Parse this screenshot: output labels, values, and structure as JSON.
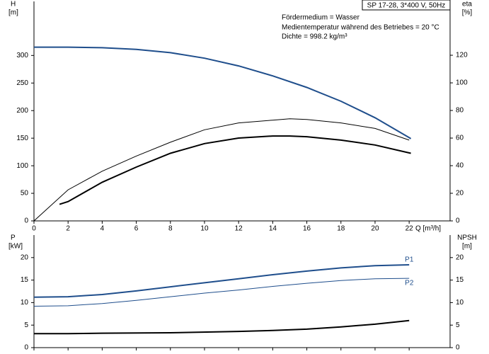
{
  "chart_data": [
    {
      "type": "line",
      "title": "SP 17-28, 3*400 V, 50Hz",
      "annotations": [
        "Fördermedium = Wasser",
        "Medientemperatur während des Betriebes = 20 °C",
        "Dichte = 998.2 kg/m³"
      ],
      "ylabel": [
        "H",
        "[m]"
      ],
      "y2label": [
        "eta",
        "[%]"
      ],
      "xlabel": "Q [m³/h]",
      "xlim": [
        0,
        24.4
      ],
      "xticks": [
        0,
        2,
        4,
        6,
        8,
        10,
        12,
        14,
        16,
        18,
        20,
        22
      ],
      "ylim": [
        0,
        398
      ],
      "yticks": [
        0,
        50,
        100,
        150,
        200,
        250,
        300
      ],
      "y2lim": [
        0,
        159
      ],
      "y2ticks": [
        0,
        20,
        40,
        60,
        80,
        100,
        120
      ],
      "series": [
        {
          "color": "#1f4e8c",
          "x": [
            0,
            2,
            4,
            6,
            8,
            10,
            12,
            14,
            16,
            18,
            20,
            22,
            22.1
          ],
          "values": [
            315,
            315,
            314,
            311,
            305,
            295,
            281,
            263,
            242,
            217,
            187,
            151,
            149
          ]
        },
        {
          "color": "#000000",
          "axis": "y2",
          "x": [
            0,
            2,
            4,
            6,
            8,
            10,
            12,
            14,
            15,
            16,
            18,
            20,
            22
          ],
          "values": [
            0,
            22.5,
            36,
            47,
            57,
            66,
            71,
            73,
            74,
            73.5,
            71,
            67,
            58.5
          ]
        },
        {
          "color": "#000000",
          "axis": "y2",
          "x": [
            1.5,
            2,
            4,
            6,
            8,
            10,
            12,
            14,
            15,
            16,
            18,
            20,
            22.1
          ],
          "values": [
            12,
            14,
            28,
            39,
            49,
            56,
            60,
            61.5,
            61.5,
            61,
            58.5,
            55,
            49
          ]
        }
      ]
    },
    {
      "type": "line",
      "ylabel": [
        "P",
        "[kW]"
      ],
      "y2label": [
        "NPSH",
        "[m]"
      ],
      "xlim": [
        0,
        24.4
      ],
      "xticks": [
        0,
        2,
        4,
        6,
        8,
        10,
        12,
        14,
        16,
        18,
        20,
        22
      ],
      "ylim": [
        0,
        25
      ],
      "yticks": [
        0,
        5,
        10,
        15,
        20
      ],
      "y2lim": [
        0,
        25
      ],
      "y2ticks": [
        0,
        5,
        10,
        15,
        20
      ],
      "series": [
        {
          "name": "P1",
          "color": "#1f4e8c",
          "x": [
            0,
            2,
            4,
            6,
            8,
            10,
            12,
            14,
            16,
            18,
            20,
            22
          ],
          "values": [
            11.2,
            11.3,
            11.8,
            12.6,
            13.5,
            14.4,
            15.3,
            16.2,
            17,
            17.7,
            18.2,
            18.4
          ]
        },
        {
          "name": "P2",
          "color": "#1f4e8c",
          "x": [
            0,
            2,
            4,
            6,
            8,
            10,
            12,
            14,
            16,
            18,
            20,
            22
          ],
          "values": [
            9.2,
            9.3,
            9.8,
            10.5,
            11.3,
            12.1,
            12.8,
            13.6,
            14.3,
            14.9,
            15.3,
            15.4
          ]
        },
        {
          "color": "#000000",
          "axis": "y2",
          "x": [
            0,
            2,
            4,
            8,
            12,
            14,
            16,
            18,
            20,
            22
          ],
          "values": [
            3.1,
            3.1,
            3.2,
            3.3,
            3.6,
            3.8,
            4.1,
            4.6,
            5.2,
            6
          ]
        }
      ]
    }
  ]
}
